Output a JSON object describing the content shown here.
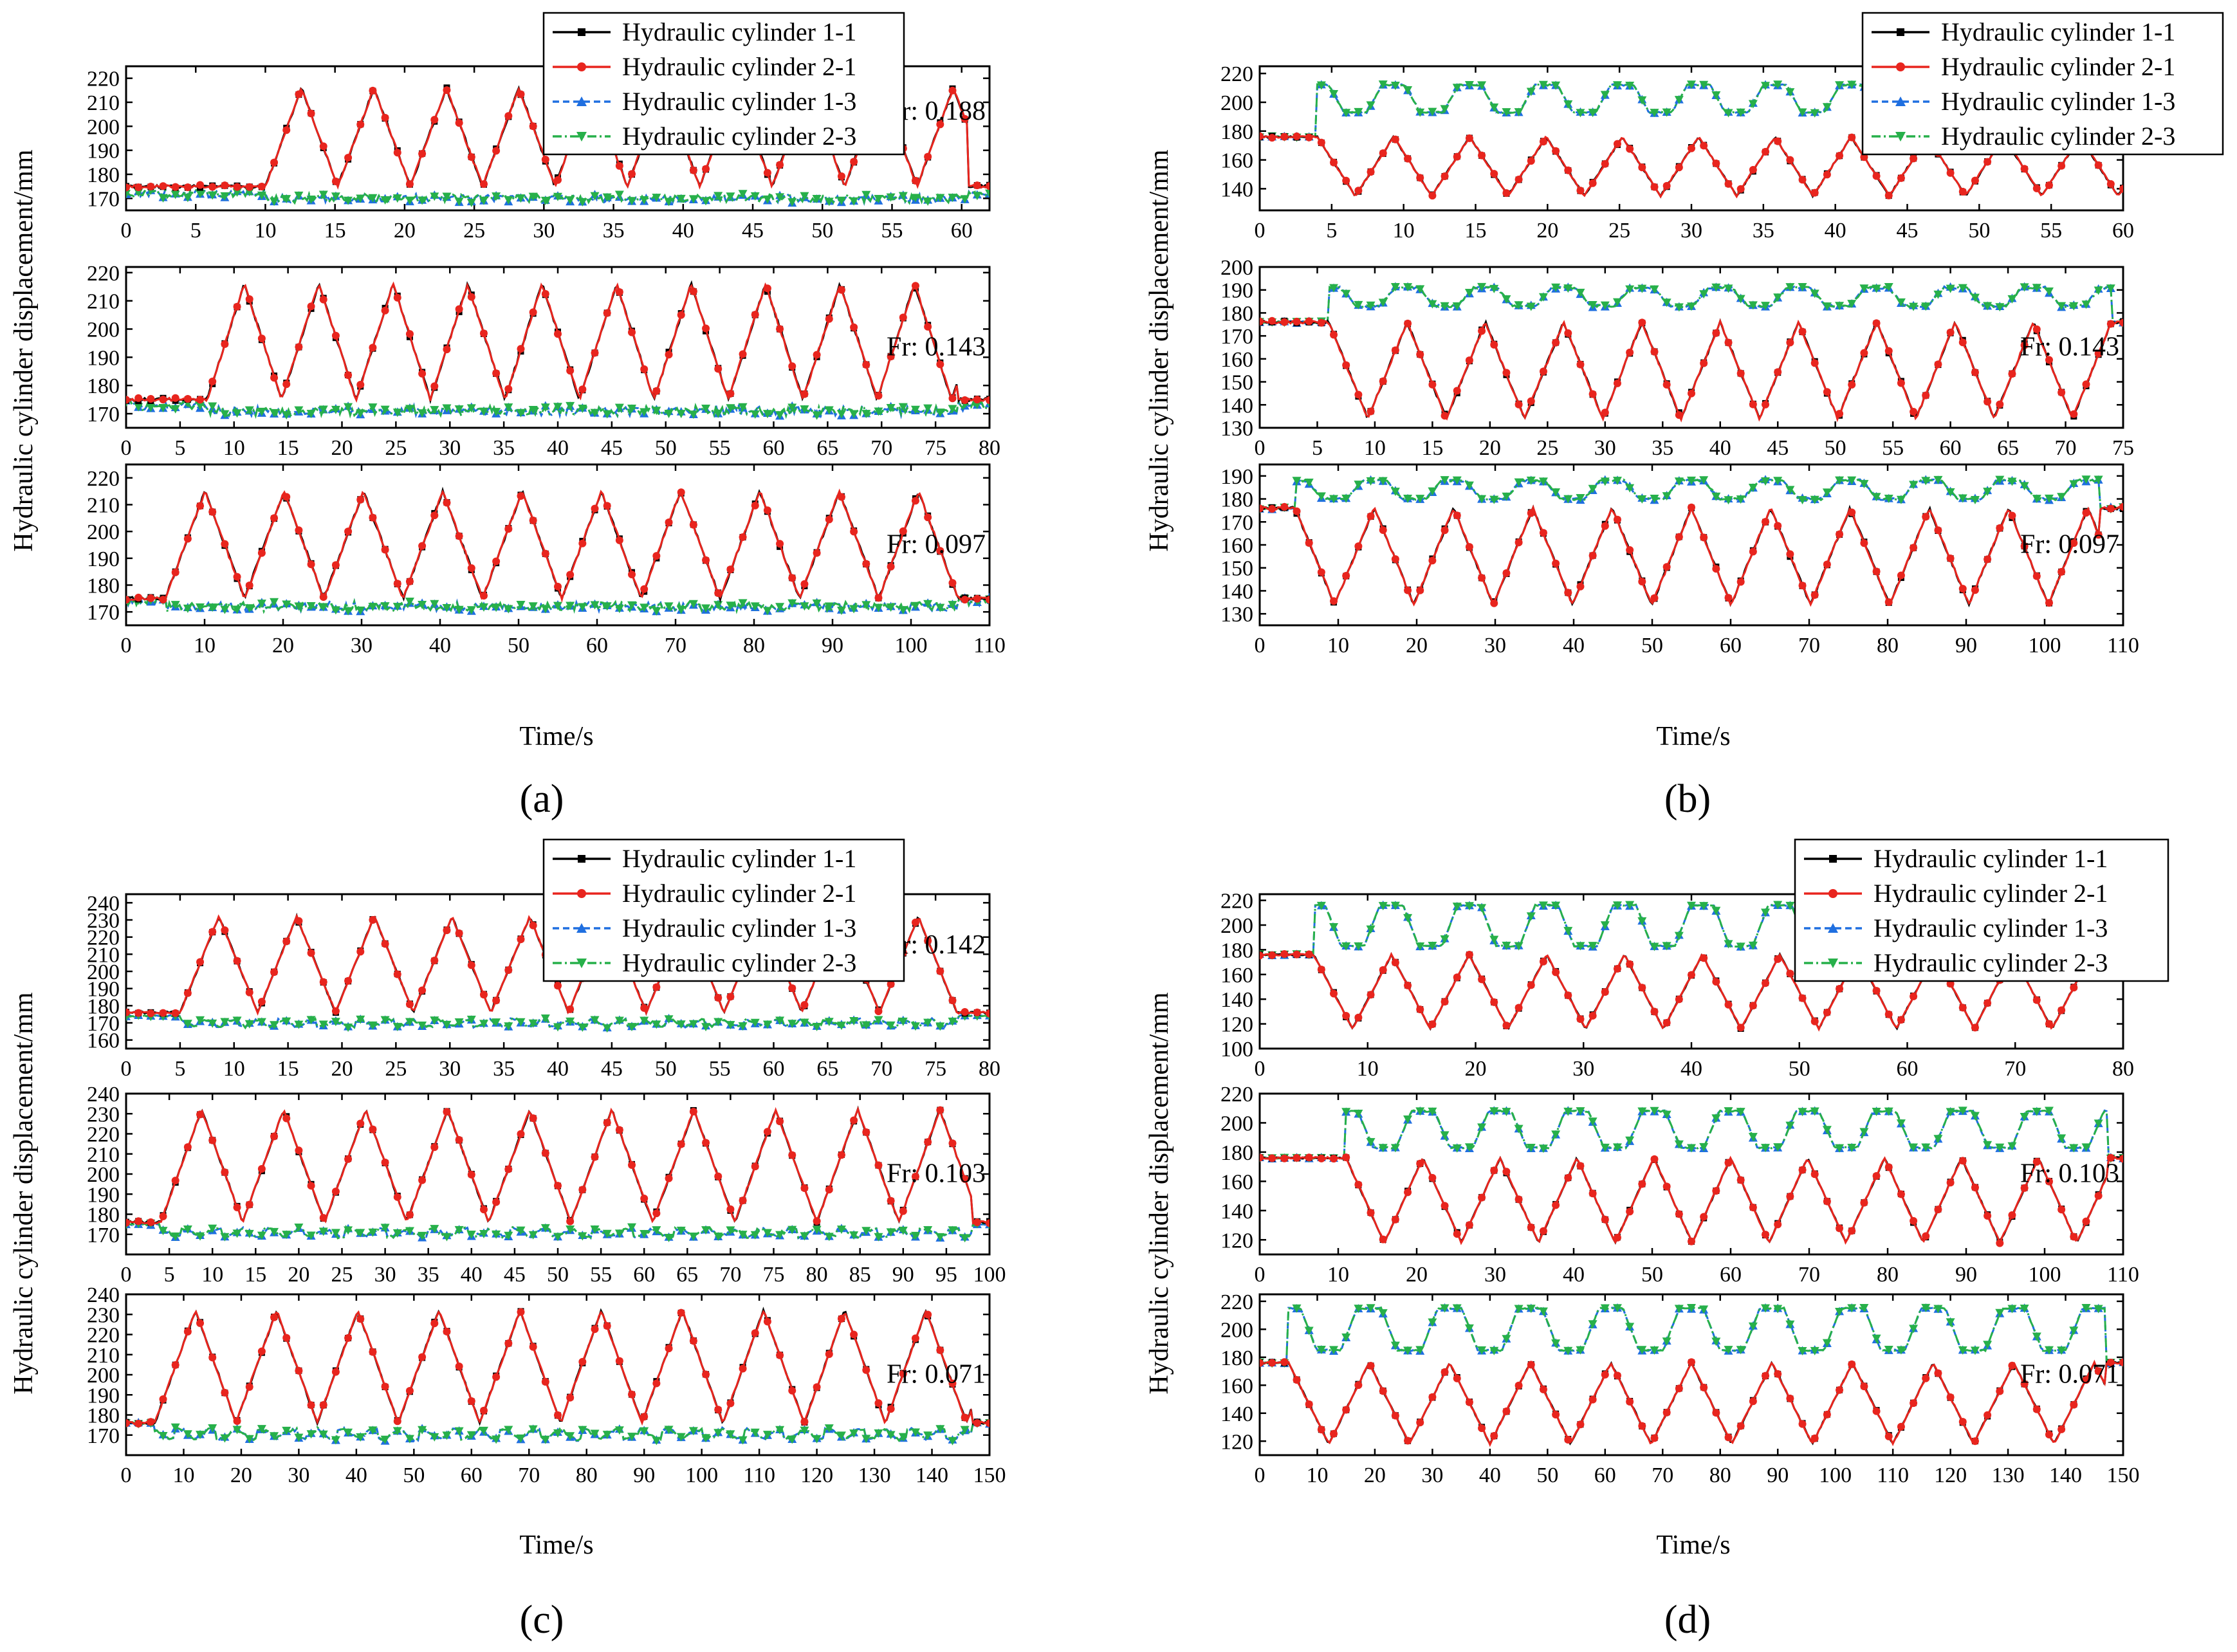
{
  "figure": {
    "legend_entries": [
      "Hydraulic cylinder 1-1",
      "Hydraulic cylinder 2-1",
      "Hydraulic cylinder 1-3",
      "Hydraulic cylinder 2-3"
    ],
    "series_colors": [
      "#000000",
      "#e8251e",
      "#1f6fe0",
      "#27b04a"
    ],
    "ylabel": "Hydraulic cylinder displacement/mm",
    "xlabel": "Time/s",
    "panel_labels": [
      "(a)",
      "(b)",
      "(c)",
      "(d)"
    ]
  },
  "chart_data": [
    {
      "panel": "a",
      "type": "line",
      "fr": "Fr: 0.188",
      "xlim": [
        0,
        62
      ],
      "xticks": [
        0,
        5,
        10,
        15,
        20,
        25,
        30,
        35,
        40,
        45,
        50,
        55,
        60
      ],
      "ylim": [
        165,
        225
      ],
      "yticks": [
        170,
        180,
        190,
        200,
        210,
        220
      ],
      "motion": {
        "base1": 175,
        "base3": 172,
        "start": 10,
        "end": 60.5,
        "period": 5.2,
        "amp1": 41,
        "amp3": 0,
        "shape3": "noise"
      }
    },
    {
      "panel": "a",
      "type": "line",
      "fr": "Fr: 0.143",
      "xlim": [
        0,
        80
      ],
      "xticks": [
        0,
        5,
        10,
        15,
        20,
        25,
        30,
        35,
        40,
        45,
        50,
        55,
        60,
        65,
        70,
        75,
        80
      ],
      "ylim": [
        165,
        222
      ],
      "yticks": [
        170,
        180,
        190,
        200,
        210,
        220
      ],
      "motion": {
        "base1": 175,
        "base3": 173,
        "start": 7.5,
        "end": 77,
        "period": 6.9,
        "amp1": 41,
        "amp3": 0,
        "shape3": "noise"
      }
    },
    {
      "panel": "a",
      "type": "line",
      "fr": "Fr: 0.097",
      "xlim": [
        0,
        110
      ],
      "xticks": [
        0,
        10,
        20,
        30,
        40,
        50,
        60,
        70,
        80,
        90,
        100,
        110
      ],
      "ylim": [
        165,
        225
      ],
      "yticks": [
        170,
        180,
        190,
        200,
        210,
        220
      ],
      "motion": {
        "base1": 175,
        "base3": 174,
        "start": 5,
        "end": 106,
        "period": 10.1,
        "amp1": 40,
        "amp3": 0,
        "shape3": "noise"
      }
    },
    {
      "panel": "b",
      "type": "line",
      "fr": "Fr: 0.188",
      "xlim": [
        0,
        60
      ],
      "xticks": [
        0,
        5,
        10,
        15,
        20,
        25,
        30,
        35,
        40,
        45,
        50,
        55,
        60
      ],
      "ylim": [
        125,
        225
      ],
      "yticks": [
        140,
        160,
        180,
        200,
        220
      ],
      "motion": {
        "base1": 176,
        "base3": 176,
        "start": 4,
        "end": 60,
        "period": 5.3,
        "amp1": -41,
        "amp3": 36,
        "low3": 193,
        "shape3": "opposite"
      }
    },
    {
      "panel": "b",
      "type": "line",
      "fr": "Fr: 0.143",
      "xlim": [
        0,
        75
      ],
      "xticks": [
        0,
        5,
        10,
        15,
        20,
        25,
        30,
        35,
        40,
        45,
        50,
        55,
        60,
        65,
        70,
        75
      ],
      "ylim": [
        130,
        200
      ],
      "yticks": [
        130,
        140,
        150,
        160,
        170,
        180,
        190,
        200
      ],
      "motion": {
        "base1": 176,
        "base3": 176,
        "start": 6,
        "end": 74,
        "period": 6.8,
        "amp1": -42,
        "amp3": 15,
        "low3": 183,
        "shape3": "opposite"
      }
    },
    {
      "panel": "b",
      "type": "line",
      "fr": "Fr: 0.097",
      "xlim": [
        0,
        110
      ],
      "xticks": [
        0,
        10,
        20,
        30,
        40,
        50,
        60,
        70,
        80,
        90,
        100,
        110
      ],
      "ylim": [
        125,
        195
      ],
      "yticks": [
        130,
        140,
        150,
        160,
        170,
        180,
        190
      ],
      "motion": {
        "base1": 176,
        "base3": 176,
        "start": 4.5,
        "end": 107,
        "period": 10.1,
        "amp1": -42,
        "amp3": 12,
        "low3": 180,
        "shape3": "opposite"
      }
    },
    {
      "panel": "c",
      "type": "line",
      "fr": "Fr: 0.142",
      "xlim": [
        0,
        80
      ],
      "xticks": [
        0,
        5,
        10,
        15,
        20,
        25,
        30,
        35,
        40,
        45,
        50,
        55,
        60,
        65,
        70,
        75,
        80
      ],
      "ylim": [
        155,
        245
      ],
      "yticks": [
        160,
        170,
        180,
        190,
        200,
        210,
        220,
        230,
        240
      ],
      "motion": {
        "base1": 176,
        "base3": 174,
        "start": 5,
        "end": 77,
        "period": 7.2,
        "amp1": 56,
        "amp3": -6,
        "low3": 168,
        "shape3": "same"
      }
    },
    {
      "panel": "c",
      "type": "line",
      "fr": "Fr: 0.103",
      "xlim": [
        0,
        100
      ],
      "xticks": [
        0,
        5,
        10,
        15,
        20,
        25,
        30,
        35,
        40,
        45,
        50,
        55,
        60,
        65,
        70,
        75,
        80,
        85,
        90,
        95,
        100
      ],
      "ylim": [
        160,
        240
      ],
      "yticks": [
        170,
        180,
        190,
        200,
        210,
        220,
        230,
        240
      ],
      "motion": {
        "base1": 176,
        "base3": 175,
        "start": 4,
        "end": 98,
        "period": 9.5,
        "amp1": 56,
        "amp3": -6,
        "low3": 169,
        "shape3": "same"
      }
    },
    {
      "panel": "c",
      "type": "line",
      "fr": "Fr: 0.071",
      "xlim": [
        0,
        150
      ],
      "xticks": [
        0,
        10,
        20,
        30,
        40,
        50,
        60,
        70,
        80,
        90,
        100,
        110,
        120,
        130,
        140,
        150
      ],
      "ylim": [
        160,
        240
      ],
      "yticks": [
        170,
        180,
        190,
        200,
        210,
        220,
        230,
        240
      ],
      "motion": {
        "base1": 176,
        "base3": 176,
        "start": 5,
        "end": 147,
        "period": 14.1,
        "amp1": 56,
        "amp3": -8,
        "low3": 168,
        "shape3": "same"
      }
    },
    {
      "panel": "d",
      "type": "line",
      "fr": "Fr: 0.142",
      "xlim": [
        0,
        80
      ],
      "xticks": [
        0,
        10,
        20,
        30,
        40,
        50,
        60,
        70,
        80
      ],
      "ylim": [
        100,
        225
      ],
      "yticks": [
        100,
        120,
        140,
        160,
        180,
        200,
        220
      ],
      "motion": {
        "base1": 176,
        "base3": 176,
        "start": 5,
        "end": 77,
        "period": 7.2,
        "amp1": -60,
        "amp3": 40,
        "low3": 183,
        "shape3": "opposite"
      }
    },
    {
      "panel": "d",
      "type": "line",
      "fr": "Fr: 0.103",
      "xlim": [
        0,
        110
      ],
      "xticks": [
        0,
        10,
        20,
        30,
        40,
        50,
        60,
        70,
        80,
        90,
        100,
        110
      ],
      "ylim": [
        110,
        220
      ],
      "yticks": [
        120,
        140,
        160,
        180,
        200,
        220
      ],
      "motion": {
        "base1": 176,
        "base3": 176,
        "start": 11,
        "end": 108,
        "period": 9.8,
        "amp1": -58,
        "amp3": 32,
        "low3": 183,
        "shape3": "opposite"
      }
    },
    {
      "panel": "d",
      "type": "line",
      "fr": "Fr: 0.071",
      "xlim": [
        0,
        150
      ],
      "xticks": [
        0,
        10,
        20,
        30,
        40,
        50,
        60,
        70,
        80,
        90,
        100,
        110,
        120,
        130,
        140,
        150
      ],
      "ylim": [
        110,
        225
      ],
      "yticks": [
        120,
        140,
        160,
        180,
        200,
        220
      ],
      "motion": {
        "base1": 176,
        "base3": 176,
        "start": 5,
        "end": 147,
        "period": 14,
        "amp1": -58,
        "amp3": 39,
        "low3": 185,
        "shape3": "opposite"
      }
    }
  ]
}
